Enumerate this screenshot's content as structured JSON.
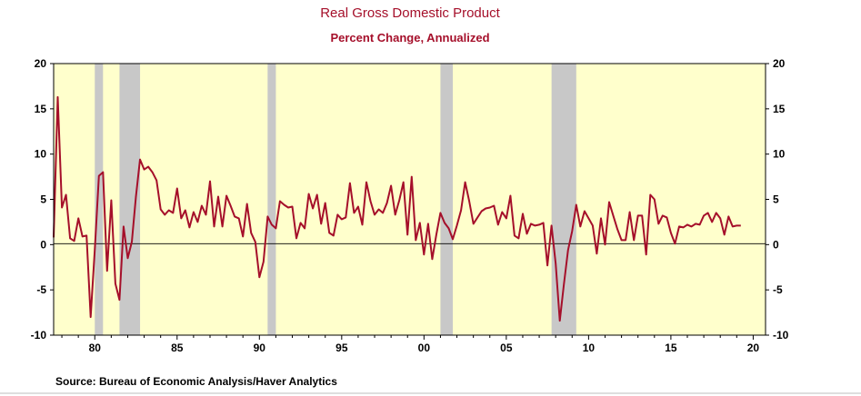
{
  "chart_data": {
    "type": "line",
    "title": "Real Gross Domestic Product",
    "subtitle": "Percent Change, Annualized",
    "source": "Source:  Bureau of Economic Analysis/Haver Analytics",
    "xlim": [
      1977.5,
      2020.75
    ],
    "ylim": [
      -10,
      20
    ],
    "x_ticks": [
      {
        "value": 1980,
        "label": "80"
      },
      {
        "value": 1985,
        "label": "85"
      },
      {
        "value": 1990,
        "label": "90"
      },
      {
        "value": 1995,
        "label": "95"
      },
      {
        "value": 2000,
        "label": "00"
      },
      {
        "value": 2005,
        "label": "05"
      },
      {
        "value": 2010,
        "label": "10"
      },
      {
        "value": 2015,
        "label": "15"
      },
      {
        "value": 2020,
        "label": "20"
      }
    ],
    "y_ticks": [
      {
        "value": 20,
        "label": "20"
      },
      {
        "value": 15,
        "label": "15"
      },
      {
        "value": 10,
        "label": "10"
      },
      {
        "value": 5,
        "label": "5"
      },
      {
        "value": 0,
        "label": "0"
      },
      {
        "value": -5,
        "label": "-5"
      },
      {
        "value": -10,
        "label": "-10"
      }
    ],
    "recessions": [
      [
        1980.0,
        1980.5
      ],
      [
        1981.5,
        1982.75
      ],
      [
        1990.5,
        1991.0
      ],
      [
        2001.0,
        2001.75
      ],
      [
        2007.75,
        2009.25
      ]
    ],
    "colors": {
      "line": "#a50f2a",
      "plot_bg": "#ffffcc",
      "recession": "#c8c8c8",
      "title": "#a50f2a"
    },
    "series": [
      {
        "start": 1977.5,
        "step": 0.25,
        "values": [
          0.8,
          16.3,
          4.1,
          5.5,
          0.7,
          0.4,
          2.9,
          0.9,
          1.0,
          -8.0,
          -0.5,
          7.6,
          8.0,
          -2.9,
          4.9,
          -4.3,
          -6.1,
          2.0,
          -1.5,
          0.3,
          5.3,
          9.4,
          8.3,
          8.6,
          8.0,
          7.1,
          3.9,
          3.3,
          3.8,
          3.5,
          6.2,
          2.9,
          3.8,
          1.9,
          3.6,
          2.5,
          4.3,
          3.3,
          7.0,
          2.0,
          5.3,
          2.0,
          5.4,
          4.3,
          3.1,
          2.9,
          0.9,
          4.5,
          1.3,
          0.3,
          -3.6,
          -1.9,
          3.1,
          2.2,
          1.8,
          4.8,
          4.4,
          4.1,
          4.2,
          0.7,
          2.4,
          1.8,
          5.6,
          4.0,
          5.5,
          2.3,
          4.6,
          1.3,
          1.0,
          3.3,
          2.8,
          3.0,
          6.8,
          3.5,
          4.2,
          2.2,
          6.9,
          4.8,
          3.3,
          3.9,
          3.5,
          4.6,
          6.5,
          3.3,
          4.9,
          6.9,
          1.1,
          7.5,
          0.5,
          2.4,
          -1.1,
          2.3,
          -1.6,
          1.1,
          3.5,
          2.4,
          1.8,
          0.6,
          2.1,
          3.8,
          6.9,
          4.8,
          2.3,
          3.0,
          3.7,
          4.0,
          4.1,
          4.3,
          2.2,
          3.6,
          2.9,
          5.4,
          1.0,
          0.7,
          3.4,
          1.2,
          2.3,
          2.1,
          2.2,
          2.4,
          -2.3,
          2.1,
          -2.1,
          -8.4,
          -4.4,
          -0.6,
          1.5,
          4.4,
          2.0,
          3.7,
          2.9,
          2.1,
          -1.0,
          2.9,
          0.0,
          4.7,
          3.2,
          1.7,
          0.5,
          0.5,
          3.6,
          0.5,
          3.2,
          3.2,
          -1.1,
          5.5,
          5.0,
          2.3,
          3.2,
          3.0,
          1.3,
          0.1,
          2.0,
          1.9,
          2.2,
          2.0,
          2.3,
          2.2,
          3.2,
          3.5,
          2.5,
          3.5,
          2.9,
          1.1,
          3.1,
          2.0,
          2.1,
          2.1
        ]
      }
    ]
  }
}
